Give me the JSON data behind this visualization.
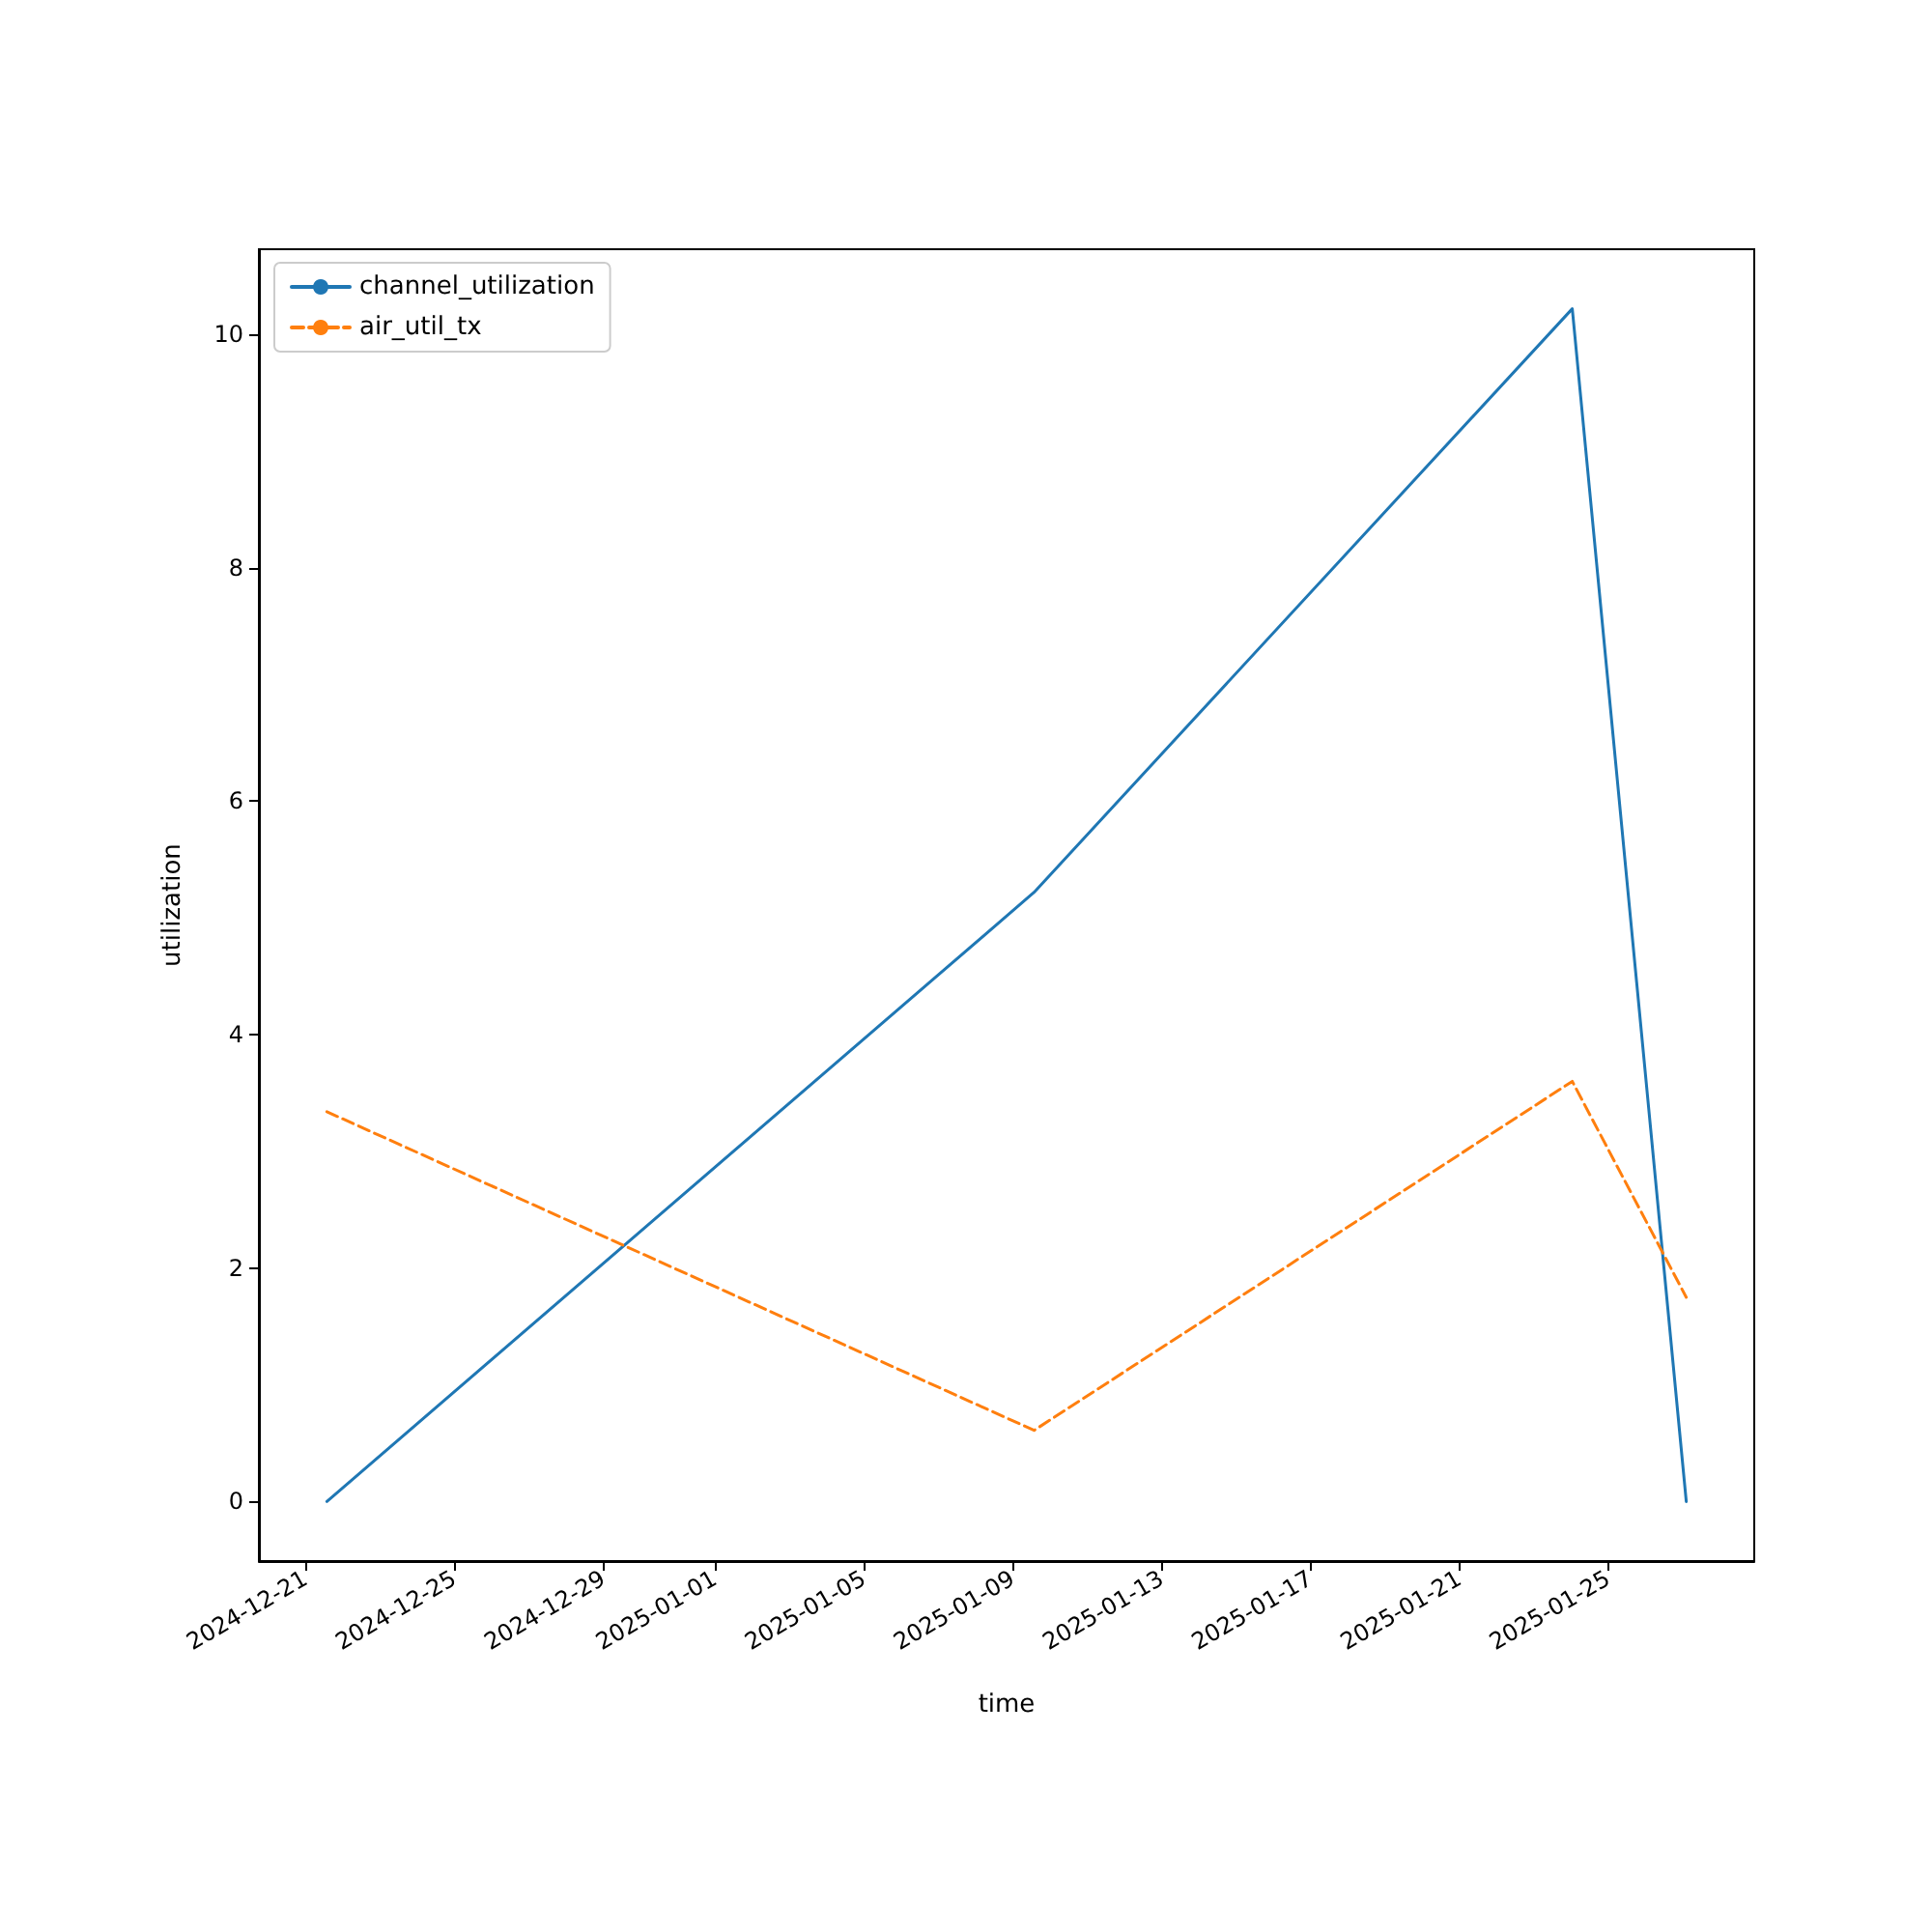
{
  "chart_data": {
    "type": "line",
    "xlabel": "time",
    "ylabel": "utilization",
    "x": [
      "2024-12-21T14:00",
      "2025-01-09T14:00",
      "2025-01-24T01:00",
      "2025-01-27T02:30"
    ],
    "series": [
      {
        "name": "channel_utilization",
        "color": "#1f77b4",
        "line_style": "solid",
        "values": [
          0,
          5.22,
          10.22,
          0
        ]
      },
      {
        "name": "air_util_tx",
        "color": "#ff7f0e",
        "line_style": "dashed",
        "values": [
          3.34,
          0.61,
          3.6,
          1.75
        ]
      }
    ],
    "xlim": [
      "2024-12-19T18:10",
      "2025-01-28T22:20"
    ],
    "xticks": [
      "2024-12-21",
      "2024-12-25",
      "2024-12-29",
      "2025-01-01",
      "2025-01-05",
      "2025-01-09",
      "2025-01-13",
      "2025-01-17",
      "2025-01-21",
      "2025-01-25"
    ],
    "ylim": [
      -0.51,
      10.73
    ],
    "yticks": [
      0,
      2,
      4,
      6,
      8,
      10
    ],
    "grid": false,
    "legend": "top left",
    "marker": "none"
  }
}
